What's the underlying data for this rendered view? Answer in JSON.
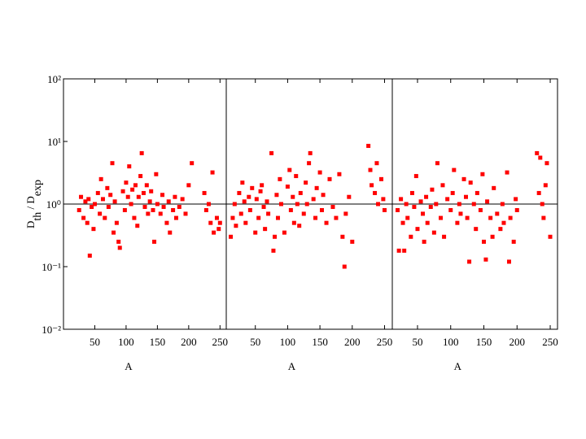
{
  "chart_data": [
    {
      "type": "scatter",
      "x_label": "A",
      "y_label": [
        "D",
        "th",
        " / D",
        "exp"
      ],
      "color": "#ff0000",
      "log_y": true,
      "hline": 1,
      "xlim": [
        0,
        260
      ],
      "xticks": [
        50,
        100,
        150,
        200,
        250
      ],
      "ylim": [
        0.01,
        100
      ],
      "yticks": [
        {
          "value": 100,
          "label": "10²"
        },
        {
          "value": 10,
          "label": "10¹"
        },
        {
          "value": 1,
          "label": "10⁰"
        },
        {
          "value": 0.1,
          "label": "10⁻¹"
        },
        {
          "value": 0.01,
          "label": "10⁻²"
        }
      ],
      "x": [
        25,
        28,
        32,
        35,
        38,
        40,
        42,
        45,
        48,
        50,
        55,
        58,
        60,
        63,
        66,
        70,
        72,
        75,
        78,
        80,
        82,
        85,
        88,
        90,
        95,
        98,
        100,
        103,
        105,
        108,
        110,
        113,
        115,
        118,
        120,
        123,
        125,
        128,
        130,
        133,
        135,
        138,
        140,
        143,
        145,
        148,
        150,
        155,
        158,
        160,
        165,
        168,
        170,
        175,
        178,
        180,
        185,
        190,
        195,
        200,
        205,
        225,
        228,
        232,
        235,
        238,
        240,
        245,
        248,
        250
      ],
      "values": [
        0.8,
        1.3,
        0.6,
        1.1,
        0.5,
        1.2,
        0.15,
        0.9,
        0.4,
        1.0,
        1.5,
        0.7,
        2.5,
        1.2,
        0.6,
        1.8,
        0.9,
        1.4,
        4.5,
        0.35,
        1.1,
        0.5,
        0.25,
        0.2,
        1.6,
        0.8,
        2.2,
        1.3,
        4,
        1.0,
        1.7,
        0.6,
        2.0,
        0.45,
        1.3,
        2.8,
        6.5,
        1.5,
        0.9,
        2.0,
        0.7,
        1.1,
        1.6,
        0.8,
        0.25,
        3,
        1.0,
        0.7,
        1.4,
        0.9,
        0.5,
        1.1,
        0.35,
        0.8,
        1.3,
        0.6,
        0.9,
        1.2,
        0.7,
        2,
        4.5,
        1.5,
        0.8,
        1.0,
        0.5,
        3.2,
        0.35,
        0.6,
        0.4,
        0.5
      ]
    },
    {
      "type": "scatter",
      "x_label": "A",
      "color": "#ff0000",
      "log_y": true,
      "hline": 1,
      "xlim": [
        5,
        262
      ],
      "xticks": [
        50,
        100,
        150,
        200,
        250
      ],
      "ylim": [
        0.01,
        100
      ],
      "x": [
        12,
        15,
        18,
        20,
        25,
        28,
        30,
        33,
        35,
        40,
        42,
        45,
        50,
        52,
        55,
        58,
        60,
        63,
        65,
        68,
        70,
        75,
        78,
        80,
        83,
        85,
        88,
        90,
        95,
        100,
        103,
        105,
        108,
        110,
        113,
        115,
        118,
        120,
        125,
        128,
        130,
        133,
        135,
        140,
        143,
        145,
        150,
        153,
        155,
        160,
        165,
        170,
        175,
        180,
        185,
        188,
        190,
        195,
        200,
        225,
        228,
        230,
        235,
        238,
        240,
        245,
        248,
        250
      ],
      "values": [
        0.3,
        0.6,
        1.0,
        0.45,
        1.5,
        0.7,
        2.2,
        1.1,
        0.5,
        1.3,
        0.8,
        1.8,
        0.35,
        1.2,
        0.6,
        1.6,
        2.0,
        0.9,
        0.4,
        1.1,
        0.7,
        6.5,
        0.18,
        0.3,
        1.4,
        0.6,
        2.5,
        1.0,
        0.35,
        1.9,
        3.5,
        0.8,
        1.3,
        0.5,
        2.8,
        1.0,
        0.45,
        1.5,
        0.7,
        2.2,
        1.0,
        4.5,
        6.5,
        1.2,
        0.6,
        1.8,
        3.2,
        0.8,
        1.4,
        0.5,
        2.5,
        0.9,
        0.6,
        3.0,
        0.3,
        0.1,
        0.7,
        1.3,
        0.25,
        8.5,
        3.5,
        2.0,
        1.5,
        4.5,
        1.0,
        2.5,
        1.2,
        0.8
      ]
    },
    {
      "type": "scatter",
      "x_label": "A",
      "color": "#ff0000",
      "log_y": true,
      "hline": 1,
      "xlim": [
        12,
        261
      ],
      "xticks": [
        50,
        100,
        150,
        200,
        250
      ],
      "ylim": [
        0.01,
        100
      ],
      "x": [
        20,
        22,
        25,
        28,
        30,
        33,
        35,
        40,
        42,
        45,
        48,
        50,
        55,
        58,
        60,
        63,
        65,
        70,
        72,
        75,
        78,
        80,
        85,
        88,
        90,
        95,
        100,
        103,
        105,
        110,
        113,
        115,
        120,
        123,
        125,
        128,
        130,
        135,
        138,
        140,
        145,
        148,
        150,
        153,
        155,
        160,
        163,
        165,
        170,
        175,
        178,
        180,
        185,
        188,
        190,
        195,
        198,
        200,
        230,
        233,
        235,
        238,
        240,
        243,
        245,
        250
      ],
      "values": [
        0.8,
        0.18,
        1.2,
        0.5,
        0.18,
        1.0,
        0.6,
        0.3,
        1.5,
        0.9,
        2.8,
        0.4,
        1.1,
        0.7,
        0.25,
        1.3,
        0.5,
        0.9,
        1.7,
        0.35,
        1.0,
        4.5,
        0.6,
        2.0,
        0.3,
        1.2,
        0.8,
        1.5,
        3.5,
        0.5,
        1.0,
        0.7,
        2.5,
        1.3,
        0.6,
        0.12,
        2.2,
        1.0,
        0.4,
        1.5,
        0.8,
        3.0,
        0.25,
        0.13,
        1.1,
        0.6,
        0.3,
        1.8,
        0.7,
        0.4,
        1.0,
        0.5,
        3.2,
        0.12,
        0.6,
        0.25,
        1.2,
        0.8,
        6.5,
        1.5,
        5.5,
        1.0,
        0.6,
        2.0,
        4.5,
        0.3
      ]
    }
  ]
}
